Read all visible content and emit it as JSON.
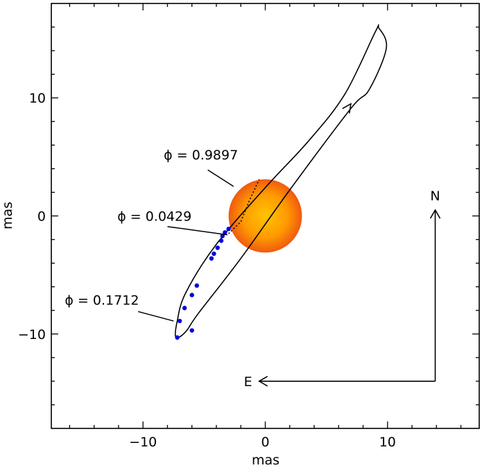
{
  "chart_data": {
    "type": "scatter",
    "xlabel": "mas",
    "ylabel": "mas",
    "xlim": [
      -17.5,
      17.5
    ],
    "ylim": [
      -18,
      18
    ],
    "x_ticks": [
      -10,
      0,
      10
    ],
    "y_ticks": [
      -10,
      0,
      10
    ],
    "x_tick_labels": [
      "−10",
      "0",
      "10"
    ],
    "y_tick_labels": [
      "−10",
      "0",
      "10"
    ],
    "grid": false,
    "star": {
      "center": [
        0,
        0
      ],
      "radius": 3.0,
      "colors": [
        "#ffc400",
        "#ff9a00",
        "#f05a10"
      ]
    },
    "orbit_control": [
      [
        9.3,
        15.9
      ],
      [
        9.9,
        14.2
      ],
      [
        8.5,
        10.7
      ],
      [
        7.0,
        9.1
      ],
      [
        2.0,
        2.2
      ],
      [
        -2.0,
        -3.6
      ],
      [
        -5.5,
        -8.3
      ],
      [
        -6.5,
        -9.8
      ],
      [
        -7.3,
        -10.3
      ],
      [
        -7.2,
        -8.9
      ],
      [
        -6.5,
        -6.5
      ],
      [
        -4.0,
        -2.4
      ],
      [
        0.0,
        2.4
      ],
      [
        3.5,
        6.3
      ],
      [
        6.5,
        10.3
      ],
      [
        9.0,
        15.6
      ]
    ],
    "dotted_segment": [
      [
        -3.0,
        -1.5
      ],
      [
        -2.0,
        -0.5
      ],
      [
        -1.3,
        1.3
      ],
      [
        -0.5,
        3.1
      ]
    ],
    "arrow": {
      "at": [
        7.0,
        9.5
      ],
      "toward": [
        7.2,
        9.8
      ]
    },
    "points": {
      "color": "#0000dd",
      "x": [
        -7.2,
        -7.0,
        -6.6,
        -6.0,
        -5.6,
        -4.4,
        -4.2,
        -3.9,
        -3.6,
        -3.5,
        -3.3,
        -3.0,
        -6.0
      ],
      "y": [
        -10.3,
        -8.9,
        -7.8,
        -6.7,
        -5.9,
        -3.6,
        -3.2,
        -2.7,
        -2.1,
        -1.7,
        -1.4,
        -1.1,
        -9.7
      ]
    },
    "annotations": [
      {
        "text": "ϕ  =  0.9897",
        "x": -8.3,
        "y": 5.2,
        "leader": [
          [
            -4.7,
            3.9
          ],
          [
            -2.6,
            2.5
          ]
        ]
      },
      {
        "text": "ϕ  =  0.0429",
        "x": -12.1,
        "y": 0,
        "leader": [
          [
            -8.0,
            -0.9
          ],
          [
            -3.1,
            -1.6
          ]
        ]
      },
      {
        "text": "ϕ  =  0.1712",
        "x": -16.4,
        "y": -7.1,
        "leader": [
          [
            -10.4,
            -8.1
          ],
          [
            -7.5,
            -8.9
          ]
        ]
      }
    ],
    "compass": {
      "north_label": "N",
      "east_label": "E",
      "corner": [
        13.9,
        -14.0
      ],
      "north_tip": [
        13.9,
        0.5
      ],
      "east_tip": [
        -0.5,
        -14.0
      ]
    }
  }
}
